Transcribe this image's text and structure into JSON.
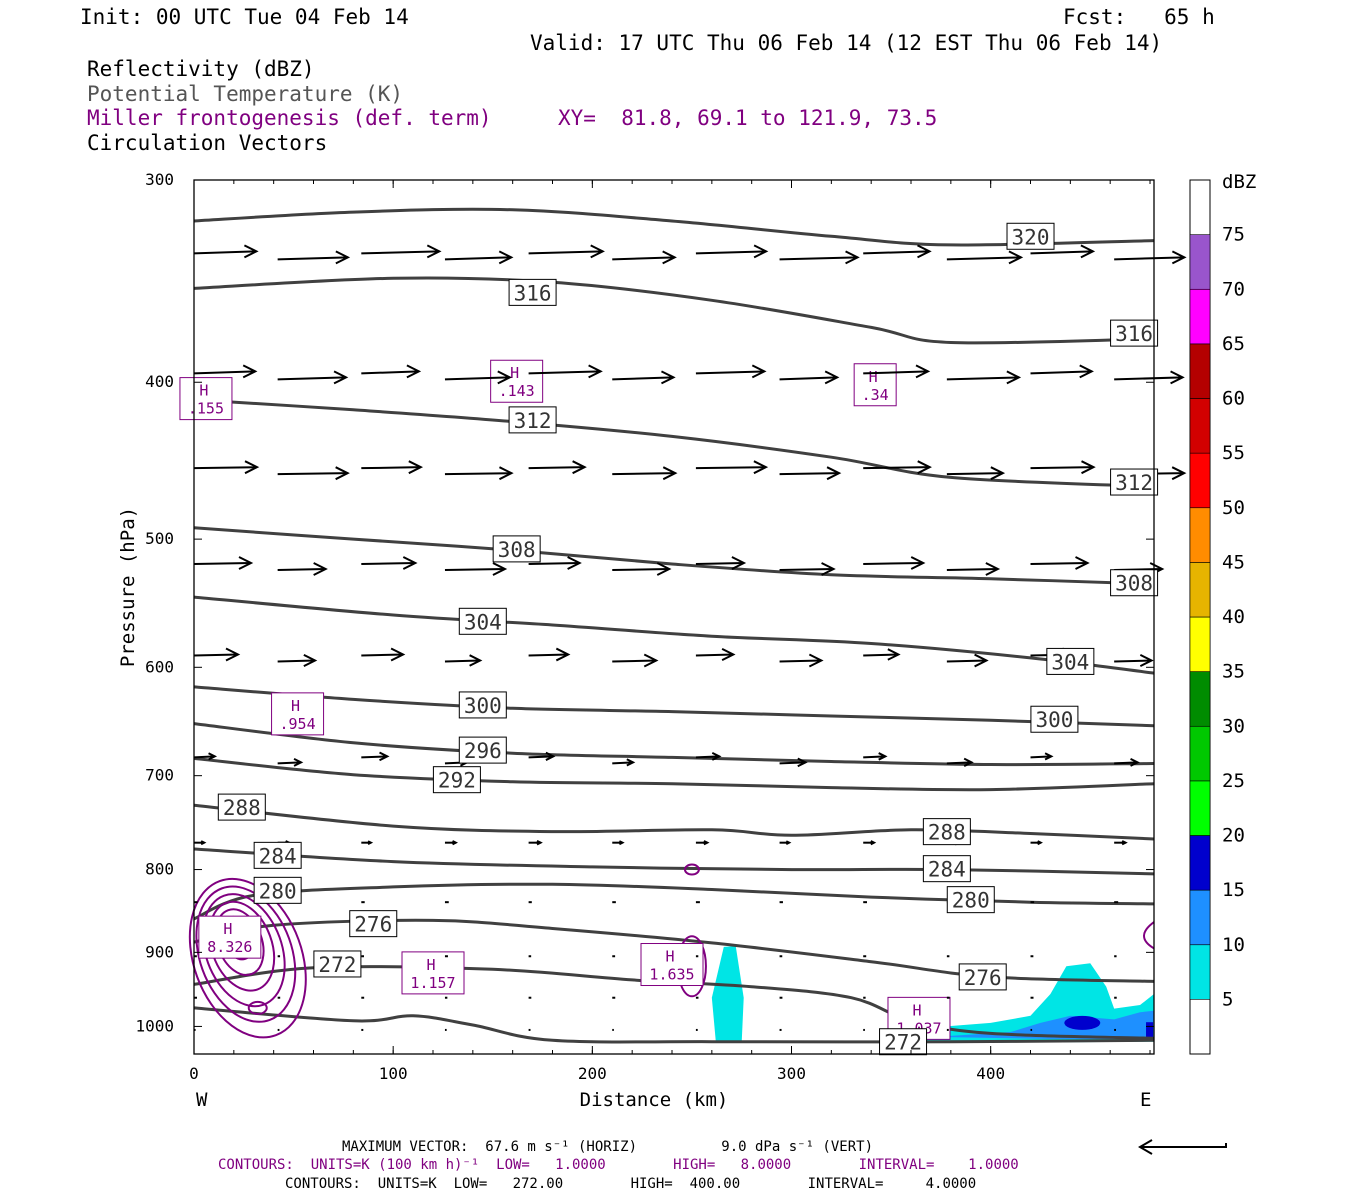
{
  "header": {
    "init": "Init: 00 UTC Tue 04 Feb 14",
    "fcst": "Fcst:   65 h",
    "valid": "Valid: 17 UTC Thu 06 Feb 14 (12 EST Thu 06 Feb 14)",
    "field1": "Reflectivity (dBZ)",
    "field2": "Potential Temperature (K)",
    "field3": "Miller frontogenesis (def. term)",
    "xy": "XY=  81.8, 69.1 to 121.9, 73.5",
    "field4": "Circulation Vectors"
  },
  "footer": {
    "maxvec": "MAXIMUM VECTOR:  67.6 m s⁻¹ (HORIZ)          9.0 dPa s⁻¹ (VERT)",
    "contours1": "CONTOURS:  UNITS=K (100 km h)⁻¹  LOW=   1.0000        HIGH=   8.0000        INTERVAL=    1.0000",
    "contours2": "CONTOURS:  UNITS=K  LOW=   272.00        HIGH=  400.00        INTERVAL=     4.0000"
  },
  "colors": {
    "theta": "#404040",
    "frontogenesis": "#800080",
    "vectors": "#000000"
  },
  "chart_data": {
    "type": "cross-section",
    "xlabel": "Distance (km)",
    "ylabel": "Pressure (hPa)",
    "x_range": [
      0,
      482
    ],
    "y_range": [
      1040,
      300
    ],
    "y_scale": "log-pressure",
    "x_ticks": [
      "0",
      "100",
      "200",
      "300",
      "400"
    ],
    "y_ticks": [
      "300",
      "400",
      "500",
      "600",
      "700",
      "800",
      "900",
      "1000"
    ],
    "x_end_labels": {
      "left": "W",
      "right": "E"
    },
    "colorbar": {
      "unit": "dBZ",
      "labels": [
        "5",
        "10",
        "15",
        "20",
        "25",
        "30",
        "35",
        "40",
        "45",
        "50",
        "55",
        "60",
        "65",
        "70",
        "75"
      ],
      "colors": [
        "#00e5e5",
        "#1e90ff",
        "#0000cd",
        "#00ff00",
        "#00c800",
        "#008c00",
        "#ffff00",
        "#e6b400",
        "#ff8c00",
        "#ff0000",
        "#d20000",
        "#b40000",
        "#ff00ff",
        "#9955cc"
      ]
    },
    "theta_contours": [
      {
        "label": "320",
        "points": [
          [
            0,
            318
          ],
          [
            80,
            314
          ],
          [
            160,
            313
          ],
          [
            240,
            318
          ],
          [
            320,
            325
          ],
          [
            380,
            329
          ],
          [
            482,
            327
          ]
        ],
        "label_positions": [
          [
            420,
            325
          ]
        ]
      },
      {
        "label": "316",
        "points": [
          [
            0,
            350
          ],
          [
            100,
            345
          ],
          [
            180,
            347
          ],
          [
            260,
            356
          ],
          [
            340,
            370
          ],
          [
            380,
            378
          ],
          [
            482,
            376
          ]
        ],
        "label_positions": [
          [
            170,
            352
          ],
          [
            472,
            373
          ]
        ]
      },
      {
        "label": "312",
        "points": [
          [
            0,
            410
          ],
          [
            80,
            416
          ],
          [
            160,
            423
          ],
          [
            240,
            432
          ],
          [
            320,
            445
          ],
          [
            380,
            458
          ],
          [
            482,
            464
          ]
        ],
        "label_positions": [
          [
            170,
            422
          ],
          [
            472,
            461
          ]
        ]
      },
      {
        "label": "308",
        "points": [
          [
            0,
            492
          ],
          [
            80,
            500
          ],
          [
            160,
            508
          ],
          [
            240,
            518
          ],
          [
            320,
            526
          ],
          [
            400,
            529
          ],
          [
            482,
            533
          ]
        ],
        "label_positions": [
          [
            162,
            507
          ],
          [
            472,
            532
          ]
        ]
      },
      {
        "label": "304",
        "points": [
          [
            0,
            543
          ],
          [
            100,
            557
          ],
          [
            180,
            565
          ],
          [
            260,
            574
          ],
          [
            340,
            580
          ],
          [
            420,
            592
          ],
          [
            482,
            605
          ]
        ],
        "label_positions": [
          [
            145,
            562
          ],
          [
            440,
            595
          ]
        ]
      },
      {
        "label": "300",
        "points": [
          [
            0,
            617
          ],
          [
            80,
            628
          ],
          [
            160,
            636
          ],
          [
            240,
            639
          ],
          [
            320,
            643
          ],
          [
            400,
            647
          ],
          [
            482,
            652
          ]
        ],
        "label_positions": [
          [
            145,
            633
          ],
          [
            432,
            646
          ]
        ]
      },
      {
        "label": "296",
        "points": [
          [
            0,
            650
          ],
          [
            80,
            668
          ],
          [
            160,
            678
          ],
          [
            240,
            682
          ],
          [
            320,
            686
          ],
          [
            400,
            689
          ],
          [
            482,
            688
          ]
        ],
        "label_positions": [
          [
            145,
            675
          ]
        ]
      },
      {
        "label": "292",
        "points": [
          [
            0,
            683
          ],
          [
            80,
            699
          ],
          [
            160,
            706
          ],
          [
            240,
            708
          ],
          [
            320,
            712
          ],
          [
            400,
            714
          ],
          [
            482,
            708
          ]
        ],
        "label_positions": [
          [
            132,
            704
          ]
        ]
      },
      {
        "label": "288",
        "points": [
          [
            0,
            730
          ],
          [
            100,
            752
          ],
          [
            180,
            758
          ],
          [
            260,
            756
          ],
          [
            300,
            762
          ],
          [
            360,
            756
          ],
          [
            420,
            760
          ],
          [
            482,
            766
          ]
        ],
        "label_positions": [
          [
            24,
            732
          ],
          [
            378,
            758
          ]
        ]
      },
      {
        "label": "284",
        "points": [
          [
            0,
            777
          ],
          [
            100,
            791
          ],
          [
            200,
            797
          ],
          [
            300,
            800
          ],
          [
            380,
            800
          ],
          [
            482,
            805
          ]
        ],
        "label_positions": [
          [
            42,
            784
          ],
          [
            378,
            799
          ]
        ]
      },
      {
        "label": "280",
        "points": [
          [
            0,
            858
          ],
          [
            30,
            830
          ],
          [
            100,
            820
          ],
          [
            180,
            817
          ],
          [
            260,
            823
          ],
          [
            340,
            832
          ],
          [
            420,
            838
          ],
          [
            482,
            840
          ]
        ],
        "label_positions": [
          [
            42,
            824
          ],
          [
            390,
            835
          ]
        ]
      },
      {
        "label": "276",
        "points": [
          [
            0,
            887
          ],
          [
            40,
            866
          ],
          [
            120,
            860
          ],
          [
            180,
            870
          ],
          [
            260,
            888
          ],
          [
            340,
            912
          ],
          [
            400,
            932
          ],
          [
            482,
            938
          ]
        ],
        "label_positions": [
          [
            90,
            864
          ],
          [
            396,
            932
          ]
        ]
      },
      {
        "label": "272",
        "points": [
          [
            0,
            942
          ],
          [
            60,
            920
          ],
          [
            150,
            922
          ],
          [
            220,
            936
          ],
          [
            280,
            945
          ],
          [
            330,
            960
          ],
          [
            360,
            992
          ],
          [
            400,
            1010
          ],
          [
            482,
            1017
          ]
        ],
        "label_positions": [
          [
            72,
            915
          ],
          [
            356,
            1022
          ]
        ]
      },
      {
        "label": "",
        "points": [
          [
            0,
            974
          ],
          [
            80,
            992
          ],
          [
            110,
            985
          ],
          [
            140,
            998
          ],
          [
            180,
            1020
          ],
          [
            260,
            1022
          ],
          [
            380,
            1022
          ],
          [
            482,
            1020
          ]
        ],
        "label_positions": []
      }
    ],
    "frontogenesis_maxima": [
      {
        "label": "H",
        "value": ".155",
        "x": 6,
        "p": 410
      },
      {
        "label": "H",
        "value": ".143",
        "x": 162,
        "p": 400
      },
      {
        "label": "H",
        "value": ".34",
        "x": 342,
        "p": 402
      },
      {
        "label": "H",
        "value": ".954",
        "x": 52,
        "p": 642
      },
      {
        "label": "H",
        "value": "8.326",
        "x": 18,
        "p": 882
      },
      {
        "label": "H",
        "value": "1.157",
        "x": 120,
        "p": 928
      },
      {
        "label": "H",
        "value": "1.635",
        "x": 240,
        "p": 917
      },
      {
        "label": "H",
        "value": "1.037",
        "x": 364,
        "p": 990
      }
    ]
  }
}
